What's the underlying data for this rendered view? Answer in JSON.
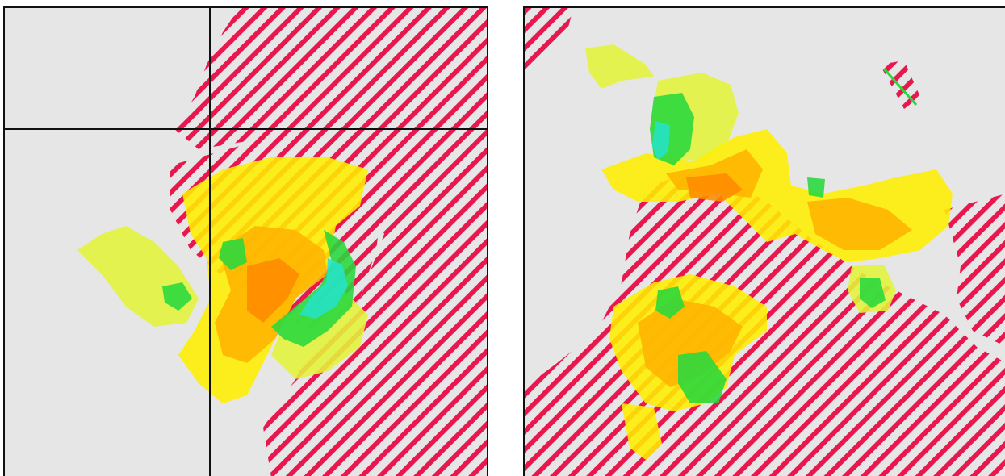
{
  "colors": {
    "background": "#e6e6e6",
    "hatch": "#e8184f",
    "level_light_yellow": "#e4f43a",
    "level_yellow": "#ffee00",
    "level_orange": "#ffb400",
    "level_dark_orange": "#ff8a00",
    "level_green": "#27d83c",
    "level_cyan": "#26e3c8",
    "crosshair": "#111111"
  },
  "panels": [
    {
      "name": "left-radar-panel",
      "crosshair": true
    },
    {
      "name": "right-radar-panel",
      "crosshair": false
    }
  ]
}
